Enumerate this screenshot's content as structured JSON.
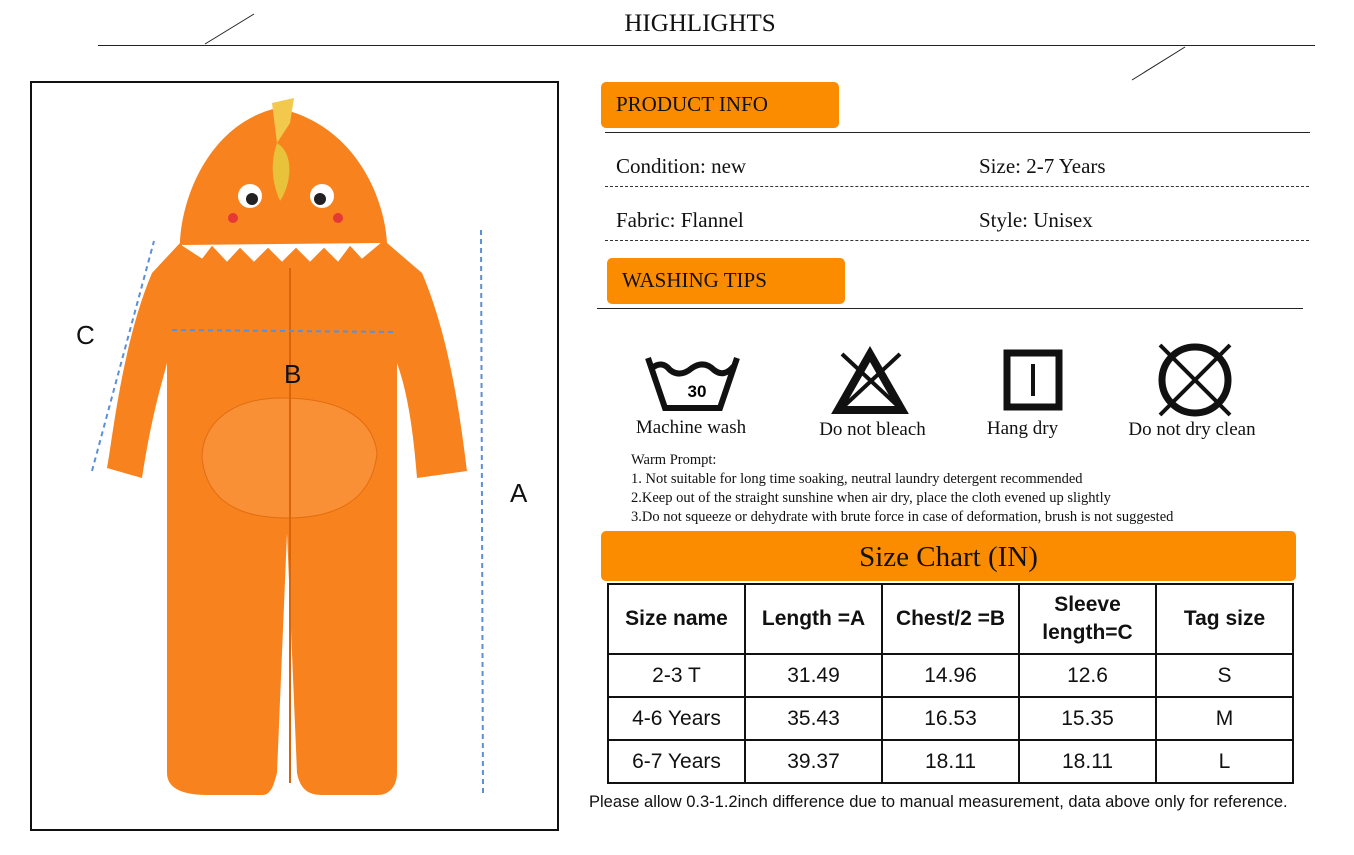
{
  "header": {
    "title": "HIGHLIGHTS"
  },
  "product_info": {
    "label": "PRODUCT INFO",
    "condition": "Condition: new",
    "size": "Size: 2-7 Years",
    "fabric": "Fabric: Flannel",
    "style": "Style: Unisex"
  },
  "washing": {
    "label": "WASHING TIPS",
    "icons": [
      {
        "icon": "machine-wash-icon",
        "label": "Machine wash",
        "temp": "30"
      },
      {
        "icon": "no-bleach-icon",
        "label": "Do not bleach"
      },
      {
        "icon": "hang-dry-icon",
        "label": "Hang dry"
      },
      {
        "icon": "no-dry-clean-icon",
        "label": "Do not dry clean"
      }
    ],
    "prompt_title": "Warm Prompt:",
    "prompts": [
      "1. Not suitable for long time soaking, neutral laundry detergent recommended",
      "2.Keep out of the straight sunshine when air dry, place the cloth evened up slightly",
      "3.Do not squeeze or dehydrate with brute force in case of deformation, brush is not suggested"
    ]
  },
  "size_chart": {
    "title": "Size Chart (IN)",
    "headers": [
      "Size name",
      "Length =A",
      "Chest/2 =B",
      "Sleeve length=C",
      "Tag size"
    ],
    "rows": [
      [
        "2-3 T",
        "31.49",
        "14.96",
        "12.6",
        "S"
      ],
      [
        "4-6 Years",
        "35.43",
        "16.53",
        "15.35",
        "M"
      ],
      [
        "6-7 Years",
        "39.37",
        "18.11",
        "18.11",
        "L"
      ]
    ],
    "note": "Please allow 0.3-1.2inch difference due to manual measurement, data above only for reference."
  },
  "diagram": {
    "labels": {
      "a": "A",
      "b": "B",
      "c": "C"
    }
  },
  "colors": {
    "accent": "#fb8c00",
    "garment": "#f7821e",
    "arrow": "#5b8fd6"
  }
}
